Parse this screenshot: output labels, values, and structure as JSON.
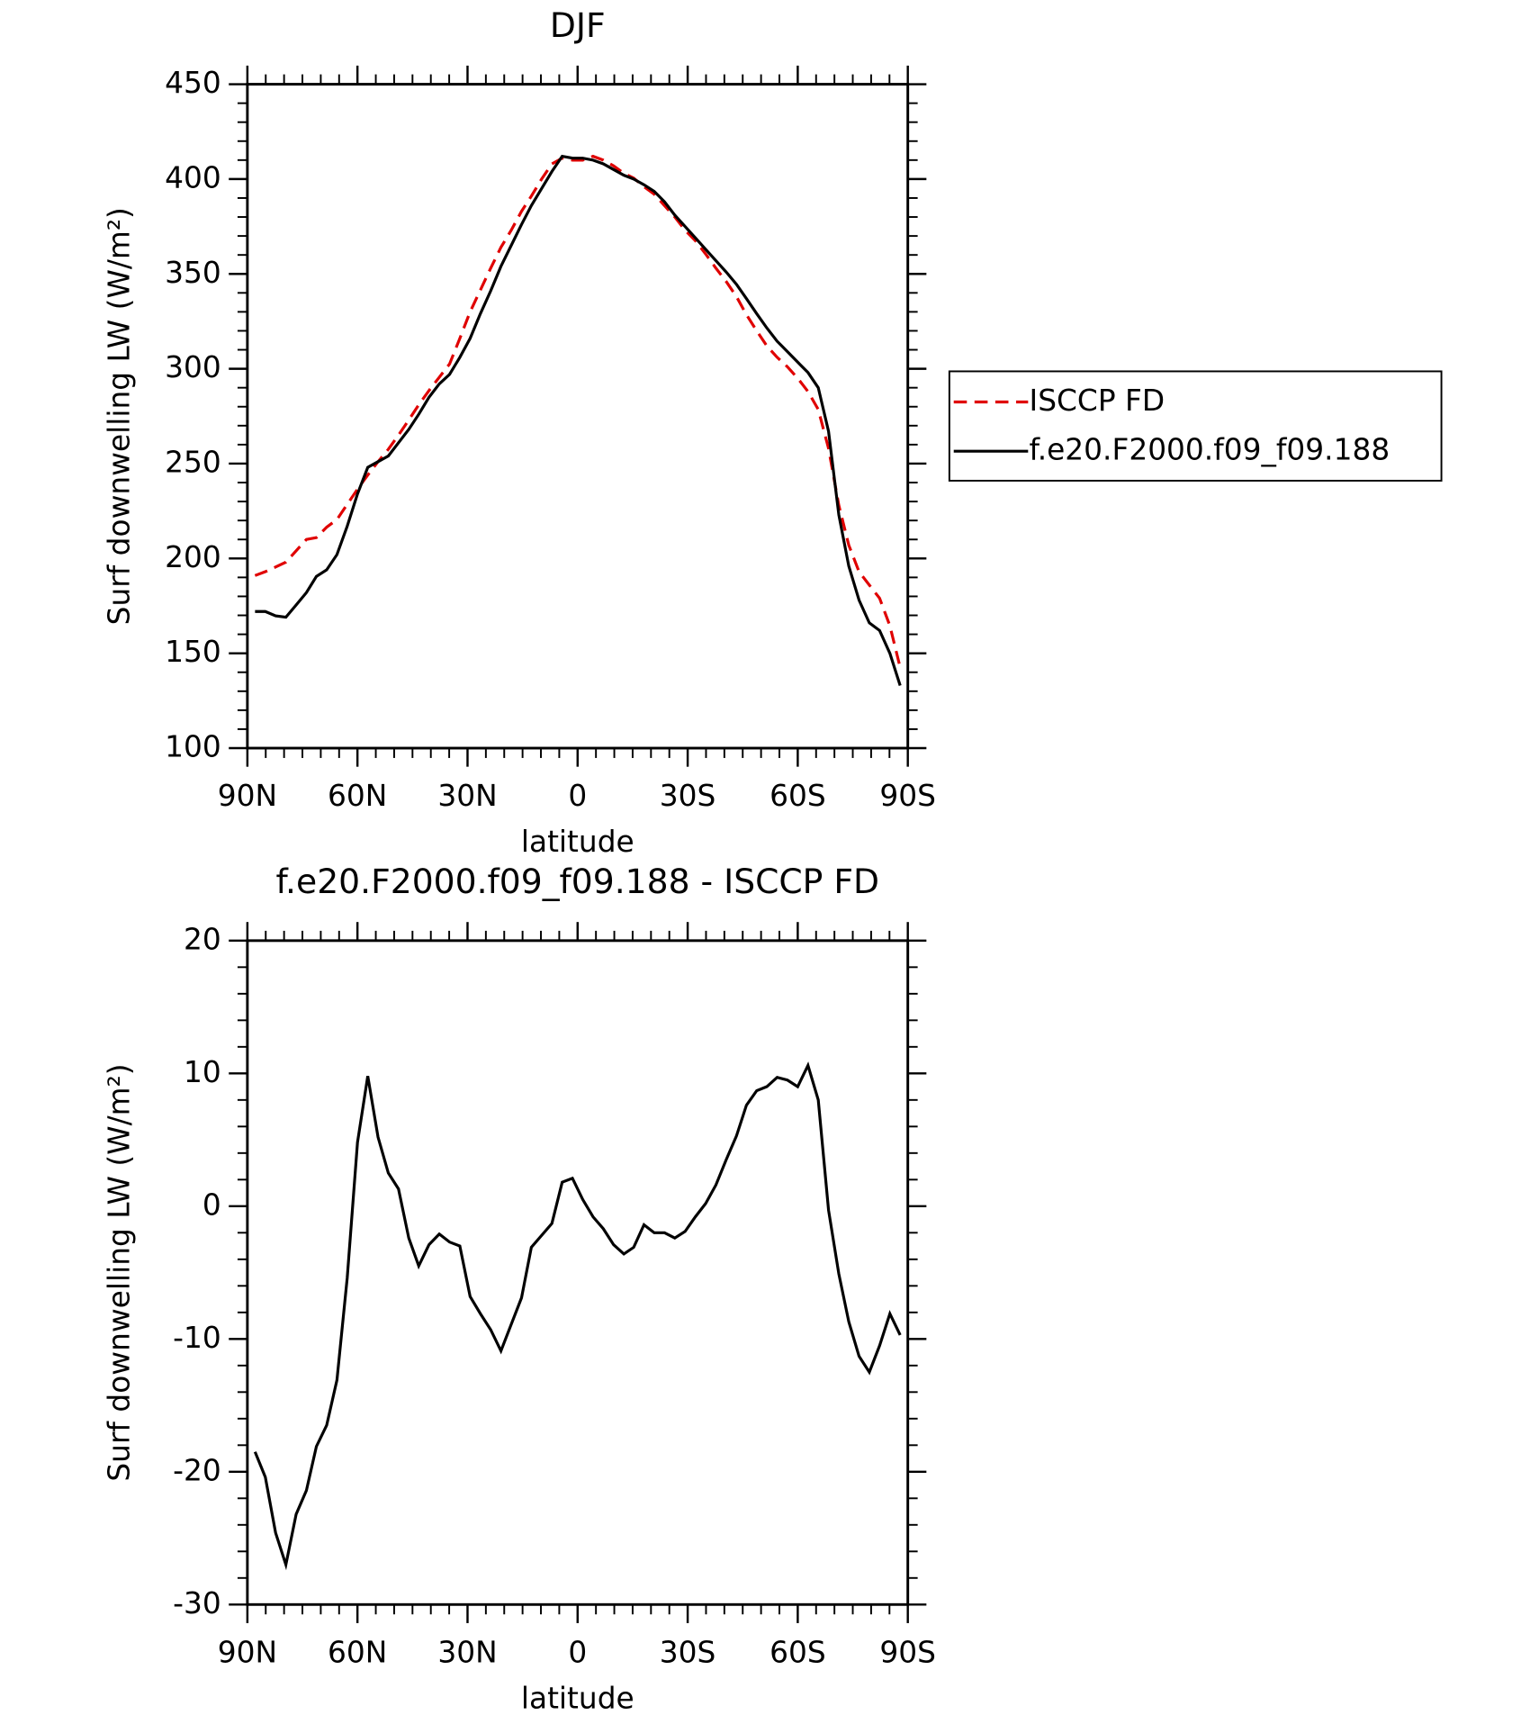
{
  "chart_data": [
    {
      "type": "line",
      "title": "DJF",
      "xlabel": "latitude",
      "ylabel": "Surf downwelling LW (W/m²)",
      "x": [
        87.9,
        85.1,
        82.3,
        79.5,
        76.7,
        73.9,
        71.2,
        68.4,
        65.6,
        62.8,
        60.0,
        57.2,
        54.4,
        51.6,
        48.8,
        46.0,
        43.3,
        40.5,
        37.7,
        34.9,
        32.1,
        29.3,
        26.5,
        23.7,
        20.9,
        18.1,
        15.3,
        12.6,
        9.8,
        7.0,
        4.2,
        1.4,
        -1.4,
        -4.2,
        -7.0,
        -9.8,
        -12.6,
        -15.3,
        -18.1,
        -20.9,
        -23.7,
        -26.5,
        -29.3,
        -32.1,
        -34.9,
        -37.7,
        -40.5,
        -43.3,
        -46.0,
        -48.8,
        -51.6,
        -54.4,
        -57.2,
        -60.0,
        -62.8,
        -65.6,
        -68.4,
        -71.2,
        -73.9,
        -76.7,
        -79.5,
        -82.3,
        -85.1,
        -87.9
      ],
      "series": [
        {
          "name": "ISCCP FD",
          "color": "#e00000",
          "dash": true,
          "values": [
            191,
            193,
            195.5,
            198,
            204,
            210,
            211,
            216.5,
            220.5,
            228.5,
            236.5,
            244,
            251,
            257.5,
            265,
            273,
            281,
            288.5,
            295.5,
            302.5,
            316,
            330,
            341.5,
            353,
            364,
            373,
            383,
            391,
            400,
            408,
            411,
            410,
            410,
            412,
            410,
            407,
            403,
            400.5,
            396,
            392,
            386,
            380,
            373,
            367.5,
            360.5,
            353,
            346,
            338,
            328.5,
            320,
            312,
            306,
            301,
            295,
            288,
            278.5,
            258,
            228,
            207,
            193,
            186,
            179,
            164.5,
            142.5
          ]
        },
        {
          "name": "f.e20.F2000.f09_f09.188",
          "color": "#000000",
          "dash": false,
          "values": [
            172,
            172,
            169.7,
            169,
            175.5,
            182,
            190.5,
            194,
            202,
            217,
            234,
            248,
            251,
            254,
            261,
            268,
            276,
            285,
            292,
            297,
            306,
            316,
            329,
            341,
            354,
            365,
            376,
            386,
            395,
            404,
            412,
            411,
            411,
            410,
            408,
            405,
            402,
            400,
            397,
            393.5,
            388,
            381,
            375,
            369,
            363,
            357,
            351,
            344.5,
            337,
            329,
            321.5,
            314.5,
            309,
            303.5,
            298,
            290,
            267,
            223,
            196,
            178,
            166,
            162,
            150,
            133
          ]
        }
      ],
      "xlim": [
        90,
        -90
      ],
      "xticks": [
        {
          "value": 90,
          "label": "90N"
        },
        {
          "value": 60,
          "label": "60N"
        },
        {
          "value": 30,
          "label": "30N"
        },
        0,
        {
          "value": -30,
          "label": "30S"
        },
        {
          "value": -60,
          "label": "60S"
        },
        {
          "value": -90,
          "label": "90S"
        }
      ],
      "ylim": [
        100,
        450
      ],
      "yticks": [
        100,
        150,
        200,
        250,
        300,
        350,
        400,
        450
      ],
      "legend": "right"
    },
    {
      "type": "line",
      "title": "f.e20.F2000.f09_f09.188 - ISCCP FD",
      "xlabel": "latitude",
      "ylabel": "Surf downwelling LW (W/m²)",
      "x": [
        87.9,
        85.1,
        82.3,
        79.5,
        76.7,
        73.9,
        71.2,
        68.4,
        65.6,
        62.8,
        60.0,
        57.2,
        54.4,
        51.6,
        48.8,
        46.0,
        43.3,
        40.5,
        37.7,
        34.9,
        32.1,
        29.3,
        26.5,
        23.7,
        20.9,
        18.1,
        15.3,
        12.6,
        9.8,
        7.0,
        4.2,
        1.4,
        -1.4,
        -4.2,
        -7.0,
        -9.8,
        -12.6,
        -15.3,
        -18.1,
        -20.9,
        -23.7,
        -26.5,
        -29.3,
        -32.1,
        -34.9,
        -37.7,
        -40.5,
        -43.3,
        -46.0,
        -48.8,
        -51.6,
        -54.4,
        -57.2,
        -60.0,
        -62.8,
        -65.6,
        -68.4,
        -71.2,
        -73.9,
        -76.7,
        -79.5,
        -82.3,
        -85.1,
        -87.9
      ],
      "color": "#000000",
      "values": [
        -18.5,
        -20.4,
        -24.6,
        -27.0,
        -23.2,
        -21.4,
        -18.1,
        -16.5,
        -13.1,
        -5.4,
        4.8,
        9.8,
        5.2,
        2.5,
        1.3,
        -2.4,
        -4.5,
        -2.9,
        -2.1,
        -2.7,
        -3.0,
        -6.8,
        -8.1,
        -9.3,
        -10.9,
        -8.9,
        -6.9,
        -3.1,
        -2.2,
        -1.3,
        1.8,
        2.1,
        0.5,
        -0.8,
        -1.7,
        -2.9,
        -3.6,
        -3.1,
        -1.4,
        -2.0,
        -2.0,
        -2.4,
        -1.9,
        -0.8,
        0.2,
        1.6,
        3.5,
        5.3,
        7.6,
        8.7,
        9.0,
        9.7,
        9.5,
        9.0,
        10.6,
        8.0,
        -0.3,
        -5.1,
        -8.7,
        -11.3,
        -12.5,
        -10.5,
        -8.1,
        -9.7
      ],
      "xlim": [
        90,
        -90
      ],
      "xticks": [
        {
          "value": 90,
          "label": "90N"
        },
        {
          "value": 60,
          "label": "60N"
        },
        {
          "value": 30,
          "label": "30N"
        },
        0,
        {
          "value": -30,
          "label": "30S"
        },
        {
          "value": -60,
          "label": "60S"
        },
        {
          "value": -90,
          "label": "90S"
        }
      ],
      "ylim": [
        -30,
        20
      ],
      "yticks": [
        -30,
        -20,
        -10,
        0,
        10,
        20
      ]
    }
  ]
}
